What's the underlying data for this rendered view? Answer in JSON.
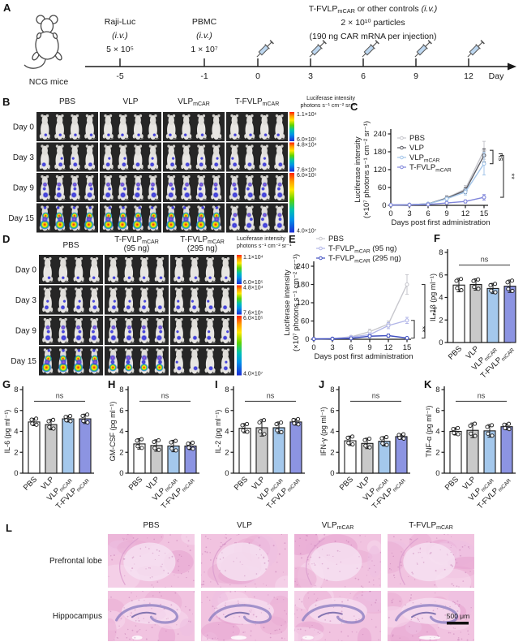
{
  "panelA": {
    "label": "A",
    "mouse_label": "NCG mice",
    "timeline_days": [
      "-5",
      "-1",
      "0",
      "3",
      "6",
      "9",
      "12"
    ],
    "axis_end_label": "Day",
    "injections": [
      {
        "day": "-5",
        "lines": [
          "Raji-Luc",
          "(i.v.)",
          "5 × 10⁵"
        ]
      },
      {
        "day": "-1",
        "lines": [
          "PBMC",
          "(i.v.)",
          "1 × 10⁷"
        ]
      }
    ],
    "treatment": {
      "base": "T-FVLP",
      "sub": "mCAR",
      "rest": " or other controls ",
      "rest_italic": "(i.v.)",
      "line2": "2 × 10¹⁰ particles",
      "line3": "(190 ng CAR mRNA per injection)"
    },
    "syringe_days": [
      "0",
      "3",
      "6",
      "9",
      "12"
    ]
  },
  "groups": [
    {
      "base": "PBS"
    },
    {
      "base": "VLP"
    },
    {
      "base": "VLP",
      "sub": "mCAR"
    },
    {
      "base": "T-FVLP",
      "sub": "mCAR"
    }
  ],
  "group_fills": [
    "#ffffff",
    "#c9c9c9",
    "#a4c8ec",
    "#8c94e2"
  ],
  "panelB": {
    "label": "B",
    "columns": [
      {
        "base": "PBS"
      },
      {
        "base": "VLP"
      },
      {
        "base": "VLP",
        "sub": "mCAR"
      },
      {
        "base": "T-FVLP",
        "sub": "mCAR"
      }
    ],
    "rows": [
      {
        "label": "Day 0",
        "intensities": [
          0,
          0,
          0,
          0
        ]
      },
      {
        "label": "Day 3",
        "intensities": [
          1,
          1,
          1,
          1
        ]
      },
      {
        "label": "Day 9",
        "intensities": [
          2,
          2,
          2,
          2
        ]
      },
      {
        "label": "Day 15",
        "intensities": [
          4,
          4,
          4,
          2
        ]
      }
    ],
    "colorbar": {
      "title1": "Luciferase intensity",
      "title2": "photons s⁻¹ cm⁻² sr⁻¹",
      "segments": [
        {
          "top": "1.1×10⁴",
          "bottom": "6.0×10⁵"
        },
        {
          "top": "4.8×10⁴",
          "bottom": "7.6×10⁵"
        },
        {
          "top": "6.0×10⁵",
          "bottom": "4.0×10⁷"
        }
      ]
    }
  },
  "panelC": {
    "label": "C"
  },
  "panelD": {
    "label": "D",
    "columns": [
      {
        "base": "PBS"
      },
      {
        "base": "T-FVLP",
        "sub": "mCAR",
        "line2": "(95 ng)"
      },
      {
        "base": "T-FVLP",
        "sub": "mCAR",
        "line2": "(295 ng)"
      }
    ],
    "rows": [
      {
        "label": "Day 0",
        "intensities": [
          0,
          0,
          0
        ]
      },
      {
        "label": "Day 3",
        "intensities": [
          1,
          1,
          1
        ]
      },
      {
        "label": "Day 9",
        "intensities": [
          2,
          2,
          1
        ]
      },
      {
        "label": "Day 15",
        "intensities": [
          4,
          3,
          1
        ]
      }
    ],
    "colorbar": {
      "title1": "Luciferase intensity",
      "title2": "photons s⁻¹ cm⁻² sr⁻¹",
      "segments": [
        {
          "top": "1.1×10⁴",
          "bottom": "6.0×10⁵"
        },
        {
          "top": "4.8×10⁴",
          "bottom": "7.6×10⁵"
        },
        {
          "top": "6.0×10⁵",
          "bottom": "4.0×10⁷"
        }
      ]
    }
  },
  "panelE": {
    "label": "E"
  },
  "panelF": {
    "label": "F"
  },
  "panelG": {
    "label": "G"
  },
  "panelH": {
    "label": "H"
  },
  "panelI": {
    "label": "I"
  },
  "panelJ": {
    "label": "J"
  },
  "panelK": {
    "label": "K"
  },
  "panelL": {
    "label": "L",
    "columns": [
      {
        "base": "PBS"
      },
      {
        "base": "VLP"
      },
      {
        "base": "VLP",
        "sub": "mCAR"
      },
      {
        "base": "T-FVLP",
        "sub": "mCAR"
      }
    ],
    "rows": [
      "Prefrontal lobe",
      "Hippocampus"
    ],
    "scale_bar": "500 μm"
  },
  "chart_data": [
    {
      "id": "C",
      "type": "line",
      "x": [
        0,
        3,
        6,
        9,
        12,
        15
      ],
      "xlabel": "Days post first administration",
      "ylabel1": "Luciferase intensity",
      "ylabel2": "(×10⁷ photons s⁻¹ cm⁻² sr⁻¹)",
      "ylim": [
        0,
        240
      ],
      "yticks": [
        0,
        60,
        120,
        180,
        240
      ],
      "series": [
        {
          "name": {
            "base": "PBS"
          },
          "color": "#c7c7cd",
          "values": [
            1,
            2,
            5,
            25,
            55,
            185
          ],
          "err": [
            0.5,
            1,
            2,
            8,
            12,
            30
          ]
        },
        {
          "name": {
            "base": "VLP"
          },
          "color": "#5c5c64",
          "values": [
            1,
            2,
            5,
            24,
            50,
            168
          ],
          "err": [
            0.5,
            1,
            2,
            6,
            10,
            22
          ]
        },
        {
          "name": {
            "base": "VLP",
            "sub": "mCAR"
          },
          "color": "#a4c6ea",
          "values": [
            1,
            2,
            5,
            22,
            45,
            140
          ],
          "err": [
            0.5,
            1,
            2,
            6,
            10,
            38
          ]
        },
        {
          "name": {
            "base": "T-FVLP",
            "sub": "mCAR"
          },
          "color": "#7f85da",
          "values": [
            1,
            1.5,
            3,
            8,
            13,
            27
          ],
          "err": [
            0.5,
            1,
            1,
            3,
            5,
            9
          ]
        }
      ],
      "sig": [
        {
          "label": "ns",
          "yTop": 185,
          "yBot": 140
        },
        {
          "label": "**",
          "yTop": 168,
          "yBot": 27
        }
      ]
    },
    {
      "id": "E",
      "type": "line",
      "x": [
        0,
        3,
        6,
        9,
        12,
        15
      ],
      "xlabel": "Days post first administration",
      "ylabel1": "Luciferase intensity",
      "ylabel2": "(×10⁷ photons s⁻¹ cm⁻² sr⁻¹)",
      "ylim": [
        0,
        240
      ],
      "yticks": [
        0,
        60,
        120,
        180,
        240
      ],
      "series": [
        {
          "name": {
            "base": "PBS"
          },
          "color": "#c7c7cd",
          "values": [
            1,
            2,
            8,
            25,
            50,
            180
          ],
          "err": [
            0.5,
            1,
            3,
            8,
            10,
            32
          ]
        },
        {
          "name": {
            "base": "T-FVLP",
            "sub": "mCAR",
            "rest": " (95 ng)"
          },
          "color": "#b2b6e8",
          "values": [
            1,
            2,
            7,
            15,
            45,
            62
          ],
          "err": [
            0.5,
            1,
            3,
            6,
            10,
            10
          ]
        },
        {
          "name": {
            "base": "T-FVLP",
            "sub": "mCAR",
            "rest": " (295 ng)"
          },
          "color": "#4150c0",
          "values": [
            1,
            1.5,
            3,
            10,
            12,
            4
          ],
          "err": [
            0.5,
            1,
            1.5,
            4,
            5,
            2
          ]
        }
      ],
      "sig": [
        {
          "label": "**",
          "yTop": 62,
          "yBot": 4
        },
        {
          "label": "***",
          "yTop": 180,
          "yBot": 4
        }
      ]
    },
    {
      "id": "F",
      "type": "bar",
      "ylabel": "IL-1β (pg ml⁻¹)",
      "ylim": [
        0,
        8
      ],
      "yticks": [
        0,
        2,
        4,
        6,
        8
      ],
      "values": [
        5.1,
        5.15,
        4.8,
        5.0
      ],
      "err": [
        0.6,
        0.5,
        0.45,
        0.55
      ],
      "sig": "ns"
    },
    {
      "id": "G",
      "type": "bar",
      "ylabel": "IL-6 (pg ml⁻¹)",
      "ylim": [
        0,
        8
      ],
      "yticks": [
        0,
        2,
        4,
        6,
        8
      ],
      "values": [
        4.9,
        4.65,
        5.2,
        5.2
      ],
      "err": [
        0.35,
        0.5,
        0.3,
        0.45
      ],
      "sig": "ns"
    },
    {
      "id": "H",
      "type": "bar",
      "ylabel": "GM-CSF (pg ml⁻¹)",
      "ylim": [
        0,
        8
      ],
      "yticks": [
        0,
        2,
        4,
        6,
        8
      ],
      "values": [
        2.8,
        2.65,
        2.6,
        2.6
      ],
      "err": [
        0.5,
        0.55,
        0.55,
        0.35
      ],
      "sig": "ns"
    },
    {
      "id": "I",
      "type": "bar",
      "ylabel": "IL-2 (pg ml⁻¹)",
      "ylim": [
        0,
        8
      ],
      "yticks": [
        0,
        2,
        4,
        6,
        8
      ],
      "values": [
        4.3,
        4.35,
        4.35,
        4.9
      ],
      "err": [
        0.45,
        0.8,
        0.55,
        0.3
      ],
      "sig": "ns"
    },
    {
      "id": "J",
      "type": "bar",
      "ylabel": "IFN-γ (pg ml⁻¹)",
      "ylim": [
        0,
        8
      ],
      "yticks": [
        0,
        2,
        4,
        6,
        8
      ],
      "values": [
        3.1,
        2.85,
        3.05,
        3.5
      ],
      "err": [
        0.45,
        0.5,
        0.45,
        0.25
      ],
      "sig": "ns"
    },
    {
      "id": "K",
      "type": "bar",
      "ylabel": "TNF-α (pg ml⁻¹)",
      "ylim": [
        0,
        8
      ],
      "yticks": [
        0,
        2,
        4,
        6,
        8
      ],
      "values": [
        4.0,
        4.1,
        4.05,
        4.45
      ],
      "err": [
        0.35,
        0.7,
        0.6,
        0.3
      ],
      "sig": "ns"
    }
  ]
}
